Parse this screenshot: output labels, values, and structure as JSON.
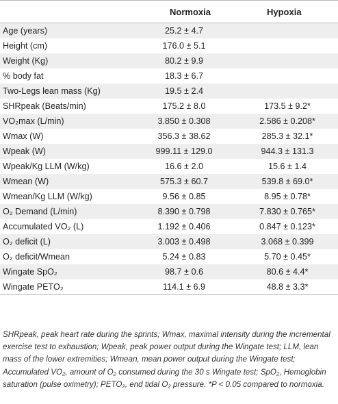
{
  "header": {
    "col1": "Normoxia",
    "col2": "Hypoxia"
  },
  "rows": [
    {
      "label": "Age (years)",
      "normoxia": "25.2 ± 4.7",
      "hypoxia": ""
    },
    {
      "label": "Height (cm)",
      "normoxia": "176.0 ± 5.1",
      "hypoxia": ""
    },
    {
      "label": "Weight (Kg)",
      "normoxia": "80.2 ± 9.9",
      "hypoxia": ""
    },
    {
      "label": "% body fat",
      "normoxia": "18.3 ± 6.7",
      "hypoxia": ""
    },
    {
      "label": "Two-Legs lean mass (Kg)",
      "normoxia": "19.5 ± 2.4",
      "hypoxia": ""
    },
    {
      "label": "SHRpeak (Beats/min)",
      "normoxia": "175.2 ± 8.0",
      "hypoxia": "173.5 ± 9.2*"
    },
    {
      "label": "VO₂max (L/min)",
      "normoxia": "3.850 ± 0.308",
      "hypoxia": "2.586 ± 0.208*"
    },
    {
      "label": "Wmax (W)",
      "normoxia": "356.3 ± 38.62",
      "hypoxia": "285.3 ± 32.1*"
    },
    {
      "label": "Wpeak (W)",
      "normoxia": "999.11 ± 129.0",
      "hypoxia": "944.3 ± 131.3"
    },
    {
      "label": "Wpeak/Kg LLM (W/kg)",
      "normoxia": "16.6 ± 2.0",
      "hypoxia": "15.6 ± 1.4"
    },
    {
      "label": "Wmean (W)",
      "normoxia": "575.3 ± 60.7",
      "hypoxia": "539.8 ± 69.0*"
    },
    {
      "label": "Wmean/Kg LLM (W/kg)",
      "normoxia": "9.56 ± 0.85",
      "hypoxia": "8.95 ± 0.78*"
    },
    {
      "label": "O₂ Demand (L/min)",
      "normoxia": "8.390 ± 0.798",
      "hypoxia": "7.830 ± 0.765*"
    },
    {
      "label": "Accumulated VO₂ (L)",
      "normoxia": "1.192 ± 0.406",
      "hypoxia": "0.847 ± 0.123*"
    },
    {
      "label": "O₂ deficit (L)",
      "normoxia": "3.003 ± 0.498",
      "hypoxia": "3.068 ± 0.399"
    },
    {
      "label": "O₂ deficit/Wmean",
      "normoxia": "5.24 ± 0.83",
      "hypoxia": "5.70 ± 0.45*"
    },
    {
      "label": "Wingate SpO₂",
      "normoxia": "98.7 ± 0.6",
      "hypoxia": "80.6 ± 4.4*"
    },
    {
      "label": "Wingate PETO₂",
      "normoxia": "114.1 ± 6.9",
      "hypoxia": "48.8 ± 3.3*"
    }
  ],
  "footnote": "SHRpeak, peak heart rate during the sprints; Wmax, maximal intensity during the incremental exercise test to exhaustion; Wpeak, peak power output during the Wingate test; LLM, lean mass of the lower extremities; Wmean, mean power output during the Wingate test; Accumulated VO₂, amount of O₂ consumed during the 30 s Wingate test; SpO₂, Hemoglobin saturation (pulse oximetry); PETO₂, end tidal O₂ pressure. *P < 0.05 compared to normoxia."
}
